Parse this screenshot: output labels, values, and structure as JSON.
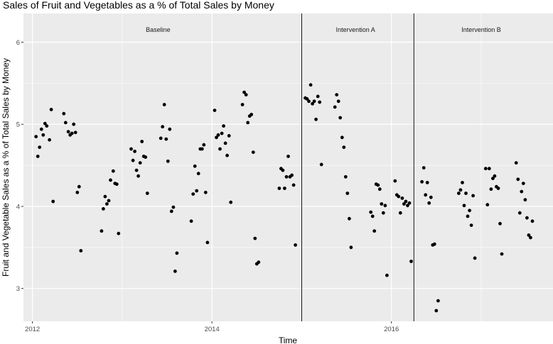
{
  "chart_data": {
    "type": "scatter",
    "title": "Sales of Fruit and Vegetables as a % of Total Sales by Money",
    "xlabel": "Time",
    "ylabel": "Fruit and Vegetable Sales as a % of Total Sales by Money",
    "xlim": [
      2011.9,
      2017.8
    ],
    "ylim": [
      2.6,
      6.35
    ],
    "x_ticks": [
      2012,
      2014,
      2016
    ],
    "x_tick_labels": [
      "2012",
      "2014",
      "2016"
    ],
    "y_ticks": [
      3,
      4,
      5,
      6
    ],
    "y_tick_labels": [
      "3",
      "4",
      "5",
      "6"
    ],
    "grid": true,
    "background": "#ebebeb",
    "grid_color": "#ffffff",
    "point_color": "#000000",
    "vlines": [
      2015.0,
      2016.25
    ],
    "phases": [
      {
        "label": "Baseline",
        "x": 2013.4
      },
      {
        "label": "Intervention A",
        "x": 2015.6
      },
      {
        "label": "Intervention B",
        "x": 2017.0
      }
    ],
    "points": [
      {
        "x": 2012.04,
        "y": 4.85
      },
      {
        "x": 2012.06,
        "y": 4.61
      },
      {
        "x": 2012.08,
        "y": 4.72
      },
      {
        "x": 2012.1,
        "y": 4.94
      },
      {
        "x": 2012.12,
        "y": 4.87
      },
      {
        "x": 2012.14,
        "y": 5.01
      },
      {
        "x": 2012.16,
        "y": 4.98
      },
      {
        "x": 2012.19,
        "y": 4.81
      },
      {
        "x": 2012.21,
        "y": 5.18
      },
      {
        "x": 2012.23,
        "y": 4.06
      },
      {
        "x": 2012.35,
        "y": 5.13
      },
      {
        "x": 2012.37,
        "y": 5.02
      },
      {
        "x": 2012.4,
        "y": 4.91
      },
      {
        "x": 2012.42,
        "y": 4.87
      },
      {
        "x": 2012.44,
        "y": 4.89
      },
      {
        "x": 2012.46,
        "y": 5.0
      },
      {
        "x": 2012.48,
        "y": 4.9
      },
      {
        "x": 2012.5,
        "y": 4.17
      },
      {
        "x": 2012.52,
        "y": 4.24
      },
      {
        "x": 2012.54,
        "y": 3.46
      },
      {
        "x": 2012.77,
        "y": 3.7
      },
      {
        "x": 2012.79,
        "y": 3.97
      },
      {
        "x": 2012.81,
        "y": 4.12
      },
      {
        "x": 2012.83,
        "y": 4.03
      },
      {
        "x": 2012.85,
        "y": 4.07
      },
      {
        "x": 2012.87,
        "y": 4.32
      },
      {
        "x": 2012.9,
        "y": 4.43
      },
      {
        "x": 2012.92,
        "y": 4.28
      },
      {
        "x": 2012.94,
        "y": 4.27
      },
      {
        "x": 2012.96,
        "y": 3.67
      },
      {
        "x": 2013.1,
        "y": 4.7
      },
      {
        "x": 2013.12,
        "y": 4.56
      },
      {
        "x": 2013.14,
        "y": 4.67
      },
      {
        "x": 2013.16,
        "y": 4.44
      },
      {
        "x": 2013.18,
        "y": 4.37
      },
      {
        "x": 2013.2,
        "y": 4.53
      },
      {
        "x": 2013.22,
        "y": 4.79
      },
      {
        "x": 2013.24,
        "y": 4.61
      },
      {
        "x": 2013.26,
        "y": 4.6
      },
      {
        "x": 2013.28,
        "y": 4.16
      },
      {
        "x": 2013.43,
        "y": 4.83
      },
      {
        "x": 2013.45,
        "y": 4.97
      },
      {
        "x": 2013.47,
        "y": 5.24
      },
      {
        "x": 2013.49,
        "y": 4.82
      },
      {
        "x": 2013.51,
        "y": 4.55
      },
      {
        "x": 2013.53,
        "y": 4.94
      },
      {
        "x": 2013.55,
        "y": 3.94
      },
      {
        "x": 2013.57,
        "y": 3.99
      },
      {
        "x": 2013.59,
        "y": 3.21
      },
      {
        "x": 2013.61,
        "y": 3.43
      },
      {
        "x": 2013.77,
        "y": 3.82
      },
      {
        "x": 2013.79,
        "y": 4.15
      },
      {
        "x": 2013.81,
        "y": 4.49
      },
      {
        "x": 2013.83,
        "y": 4.19
      },
      {
        "x": 2013.85,
        "y": 4.4
      },
      {
        "x": 2013.87,
        "y": 4.7
      },
      {
        "x": 2013.89,
        "y": 4.7
      },
      {
        "x": 2013.91,
        "y": 4.75
      },
      {
        "x": 2013.93,
        "y": 4.17
      },
      {
        "x": 2013.95,
        "y": 3.56
      },
      {
        "x": 2014.03,
        "y": 5.17
      },
      {
        "x": 2014.05,
        "y": 4.84
      },
      {
        "x": 2014.07,
        "y": 4.87
      },
      {
        "x": 2014.09,
        "y": 4.7
      },
      {
        "x": 2014.11,
        "y": 4.89
      },
      {
        "x": 2014.13,
        "y": 4.98
      },
      {
        "x": 2014.15,
        "y": 4.77
      },
      {
        "x": 2014.17,
        "y": 4.62
      },
      {
        "x": 2014.19,
        "y": 4.86
      },
      {
        "x": 2014.21,
        "y": 4.05
      },
      {
        "x": 2014.34,
        "y": 5.24
      },
      {
        "x": 2014.36,
        "y": 5.39
      },
      {
        "x": 2014.38,
        "y": 5.36
      },
      {
        "x": 2014.4,
        "y": 5.02
      },
      {
        "x": 2014.42,
        "y": 5.1
      },
      {
        "x": 2014.44,
        "y": 5.12
      },
      {
        "x": 2014.46,
        "y": 4.66
      },
      {
        "x": 2014.48,
        "y": 3.61
      },
      {
        "x": 2014.5,
        "y": 3.3
      },
      {
        "x": 2014.52,
        "y": 3.32
      },
      {
        "x": 2014.75,
        "y": 4.22
      },
      {
        "x": 2014.77,
        "y": 4.46
      },
      {
        "x": 2014.79,
        "y": 4.44
      },
      {
        "x": 2014.81,
        "y": 4.22
      },
      {
        "x": 2014.83,
        "y": 4.36
      },
      {
        "x": 2014.85,
        "y": 4.61
      },
      {
        "x": 2014.87,
        "y": 4.36
      },
      {
        "x": 2014.89,
        "y": 4.38
      },
      {
        "x": 2014.91,
        "y": 4.26
      },
      {
        "x": 2014.93,
        "y": 3.53
      },
      {
        "x": 2015.04,
        "y": 5.32
      },
      {
        "x": 2015.06,
        "y": 5.31
      },
      {
        "x": 2015.08,
        "y": 5.28
      },
      {
        "x": 2015.1,
        "y": 5.48
      },
      {
        "x": 2015.12,
        "y": 5.25
      },
      {
        "x": 2015.14,
        "y": 5.28
      },
      {
        "x": 2015.16,
        "y": 5.06
      },
      {
        "x": 2015.18,
        "y": 5.34
      },
      {
        "x": 2015.2,
        "y": 5.27
      },
      {
        "x": 2015.22,
        "y": 4.51
      },
      {
        "x": 2015.37,
        "y": 5.21
      },
      {
        "x": 2015.39,
        "y": 5.36
      },
      {
        "x": 2015.41,
        "y": 5.28
      },
      {
        "x": 2015.43,
        "y": 5.08
      },
      {
        "x": 2015.45,
        "y": 4.84
      },
      {
        "x": 2015.47,
        "y": 4.72
      },
      {
        "x": 2015.49,
        "y": 4.36
      },
      {
        "x": 2015.51,
        "y": 4.16
      },
      {
        "x": 2015.53,
        "y": 3.85
      },
      {
        "x": 2015.55,
        "y": 3.5
      },
      {
        "x": 2015.77,
        "y": 3.93
      },
      {
        "x": 2015.79,
        "y": 3.88
      },
      {
        "x": 2015.81,
        "y": 3.7
      },
      {
        "x": 2015.83,
        "y": 4.27
      },
      {
        "x": 2015.85,
        "y": 4.26
      },
      {
        "x": 2015.87,
        "y": 4.21
      },
      {
        "x": 2015.89,
        "y": 4.03
      },
      {
        "x": 2015.91,
        "y": 3.92
      },
      {
        "x": 2015.93,
        "y": 4.01
      },
      {
        "x": 2015.95,
        "y": 3.16
      },
      {
        "x": 2016.04,
        "y": 4.31
      },
      {
        "x": 2016.06,
        "y": 4.14
      },
      {
        "x": 2016.08,
        "y": 4.12
      },
      {
        "x": 2016.1,
        "y": 3.92
      },
      {
        "x": 2016.12,
        "y": 4.1
      },
      {
        "x": 2016.14,
        "y": 4.03
      },
      {
        "x": 2016.16,
        "y": 4.06
      },
      {
        "x": 2016.18,
        "y": 4.01
      },
      {
        "x": 2016.2,
        "y": 4.04
      },
      {
        "x": 2016.22,
        "y": 3.33
      },
      {
        "x": 2016.34,
        "y": 4.3
      },
      {
        "x": 2016.36,
        "y": 4.47
      },
      {
        "x": 2016.38,
        "y": 4.14
      },
      {
        "x": 2016.4,
        "y": 4.29
      },
      {
        "x": 2016.42,
        "y": 4.04
      },
      {
        "x": 2016.44,
        "y": 4.11
      },
      {
        "x": 2016.46,
        "y": 3.53
      },
      {
        "x": 2016.48,
        "y": 3.54
      },
      {
        "x": 2016.5,
        "y": 2.73
      },
      {
        "x": 2016.52,
        "y": 2.85
      },
      {
        "x": 2016.75,
        "y": 4.16
      },
      {
        "x": 2016.77,
        "y": 4.2
      },
      {
        "x": 2016.79,
        "y": 4.29
      },
      {
        "x": 2016.81,
        "y": 4.01
      },
      {
        "x": 2016.83,
        "y": 4.16
      },
      {
        "x": 2016.85,
        "y": 3.88
      },
      {
        "x": 2016.87,
        "y": 3.95
      },
      {
        "x": 2016.89,
        "y": 3.77
      },
      {
        "x": 2016.91,
        "y": 4.13
      },
      {
        "x": 2016.93,
        "y": 3.37
      },
      {
        "x": 2017.05,
        "y": 4.46
      },
      {
        "x": 2017.07,
        "y": 4.02
      },
      {
        "x": 2017.09,
        "y": 4.46
      },
      {
        "x": 2017.11,
        "y": 4.21
      },
      {
        "x": 2017.13,
        "y": 4.34
      },
      {
        "x": 2017.15,
        "y": 4.37
      },
      {
        "x": 2017.17,
        "y": 4.24
      },
      {
        "x": 2017.19,
        "y": 4.22
      },
      {
        "x": 2017.21,
        "y": 3.79
      },
      {
        "x": 2017.23,
        "y": 3.42
      },
      {
        "x": 2017.39,
        "y": 4.53
      },
      {
        "x": 2017.41,
        "y": 4.33
      },
      {
        "x": 2017.43,
        "y": 3.92
      },
      {
        "x": 2017.45,
        "y": 4.18
      },
      {
        "x": 2017.47,
        "y": 4.28
      },
      {
        "x": 2017.49,
        "y": 4.08
      },
      {
        "x": 2017.51,
        "y": 3.86
      },
      {
        "x": 2017.53,
        "y": 3.65
      },
      {
        "x": 2017.55,
        "y": 3.62
      },
      {
        "x": 2017.57,
        "y": 3.82
      }
    ]
  }
}
